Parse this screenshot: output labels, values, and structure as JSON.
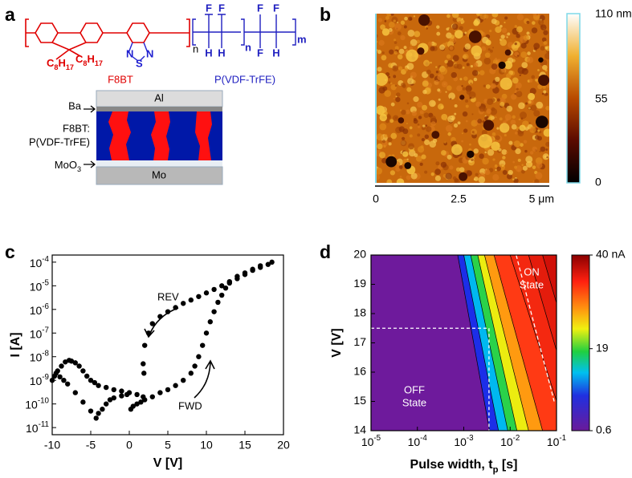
{
  "panel_labels": [
    "a",
    "b",
    "c",
    "d"
  ],
  "panel_a": {
    "f8bt": {
      "name": "F8BT",
      "side_chains": [
        "C8H17",
        "C8H17"
      ],
      "repeat": "n",
      "atoms": [
        "N",
        "S",
        "N"
      ]
    },
    "pvdf": {
      "name": "P(VDF-TrFE)",
      "repeats": [
        "n",
        "m"
      ],
      "atoms_top": [
        "F",
        "F",
        "F",
        "F"
      ],
      "atoms_bottom": [
        "H",
        "H",
        "F",
        "H"
      ]
    },
    "device": {
      "layers": [
        "Al",
        "Mo"
      ],
      "pointers": [
        "Ba",
        "MoO3"
      ],
      "active": [
        "F8BT:",
        "P(VDF-TrFE)"
      ]
    }
  },
  "panel_b": {
    "scale": [
      "0",
      "2.5",
      "5 μm"
    ],
    "colorbar": [
      "110 nm",
      "55",
      "0"
    ]
  },
  "chart_data": [
    {
      "type": "scatter",
      "xlabel": "V [V]",
      "ylabel": "I [A]",
      "color": "#000000",
      "log_y": true,
      "xlim": [
        -10,
        20
      ],
      "xticks": [
        -10,
        -5,
        0,
        5,
        10,
        15,
        20
      ],
      "ylim": [
        5e-12,
        0.0002
      ],
      "yticks": [
        {
          "value": 1e-11,
          "label": "10-11"
        },
        {
          "value": 1e-10,
          "label": "10-10"
        },
        {
          "value": 1e-09,
          "label": "10-9"
        },
        {
          "value": 1e-08,
          "label": "10-8"
        },
        {
          "value": 1e-07,
          "label": "10-7"
        },
        {
          "value": 1e-06,
          "label": "10-6"
        },
        {
          "value": 1e-05,
          "label": "10-5"
        },
        {
          "value": 0.0001,
          "label": "10-4"
        }
      ],
      "annotations": [
        "REV",
        "FWD"
      ],
      "x": [
        -9.5,
        -9,
        -8.5,
        -8,
        -7,
        -6,
        -5,
        -4.3,
        -4,
        -3.5,
        -3,
        -2.5,
        -2,
        -1,
        -0.3,
        -10,
        -9.7,
        -9.3,
        -8.8,
        -8.3,
        -7.8,
        -7.5,
        -7,
        -6.5,
        -6,
        -5.5,
        -5,
        -4.5,
        -4,
        -3,
        -2,
        -1,
        0,
        1,
        1.8,
        0.2,
        0.5,
        1,
        1.5,
        2,
        3,
        4,
        5,
        6,
        7,
        8,
        8.5,
        9,
        9.5,
        10,
        10.5,
        11,
        11.5,
        12,
        12.5,
        13,
        14,
        15,
        16,
        17,
        18,
        18.5,
        17,
        16,
        15,
        14,
        13,
        12,
        11,
        10,
        9,
        8,
        7,
        6,
        5,
        4,
        3,
        2.5,
        2,
        1.8,
        1.9
      ],
      "values": [
        2e-09,
        1.4e-09,
        1e-09,
        7e-10,
        3e-10,
        1.2e-10,
        5e-11,
        2.5e-11,
        4e-11,
        6e-11,
        1e-10,
        1.5e-10,
        1.8e-10,
        2.2e-10,
        2.5e-10,
        1e-09,
        1.5e-09,
        2.5e-09,
        4e-09,
        6e-09,
        7e-09,
        6.5e-09,
        5.5e-09,
        4e-09,
        2.5e-09,
        1.5e-09,
        1e-09,
        8e-10,
        6e-10,
        5e-10,
        4e-10,
        3.5e-10,
        3e-10,
        2.5e-10,
        2e-10,
        6e-11,
        8e-11,
        1e-10,
        1.2e-10,
        1.5e-10,
        2e-10,
        3e-10,
        4e-10,
        6e-10,
        1e-09,
        2e-09,
        4e-09,
        1e-08,
        3e-08,
        1e-07,
        3e-07,
        8e-07,
        2e-06,
        4e-06,
        8e-06,
        1.3e-05,
        2e-05,
        3e-05,
        4.5e-05,
        6e-05,
        8e-05,
        0.0001,
        7e-05,
        5e-05,
        3.5e-05,
        2.5e-05,
        1.5e-05,
        1e-05,
        7e-06,
        5e-06,
        3.5e-06,
        2.5e-06,
        1.8e-06,
        1.2e-06,
        8e-07,
        5e-07,
        2.5e-07,
        1e-07,
        3e-08,
        5e-09,
        2e-09
      ]
    },
    {
      "type": "contour",
      "xlabel": "Pulse width, tp [s]",
      "ylabel": "V [V]",
      "log_x": true,
      "xlim": [
        1e-05,
        0.1
      ],
      "xticks": [
        {
          "value": 1e-05,
          "label": "10-5"
        },
        {
          "value": 0.0001,
          "label": "10-4"
        },
        {
          "value": 0.001,
          "label": "10-3"
        },
        {
          "value": 0.01,
          "label": "10-2"
        },
        {
          "value": 0.1,
          "label": "10-1"
        }
      ],
      "ylim": [
        14,
        20
      ],
      "yticks": [
        14,
        15,
        16,
        17,
        18,
        19,
        20
      ],
      "boundaries": [
        {
          "x": [
            0.00074,
            0.0036
          ]
        },
        {
          "x": [
            0.001,
            0.0056
          ]
        },
        {
          "x": [
            0.00141,
            0.0089
          ]
        },
        {
          "x": [
            0.002,
            0.014
          ]
        },
        {
          "x": [
            0.0028,
            0.025
          ]
        },
        {
          "x": [
            0.0045,
            0.05
          ]
        },
        {
          "x": [
            0.01,
            0.16
          ]
        },
        {
          "x": [
            0.025,
            0.32
          ]
        },
        {
          "x": [
            0.05,
            0.63
          ]
        }
      ],
      "band_colors": [
        "#6e1a9c",
        "#1c2ee8",
        "#00b8f0",
        "#2ad24a",
        "#ecec10",
        "#ff9a10",
        "#ff3a14",
        "#f42810",
        "#e41c0c",
        "#d01008"
      ],
      "guide": {
        "x": 0.0035,
        "y": 17.5
      },
      "threshold": {
        "x": [
          0.0135,
          0.089
        ],
        "y": [
          20,
          15
        ]
      },
      "annotations": {
        "on": [
          "ON",
          "State"
        ],
        "off": [
          "OFF",
          "State"
        ]
      },
      "colorbar": {
        "clim": [
          0.6,
          40
        ],
        "ticks": [
          0.6,
          19,
          {
            "value": 40,
            "label": "40 nA"
          }
        ]
      }
    }
  ]
}
